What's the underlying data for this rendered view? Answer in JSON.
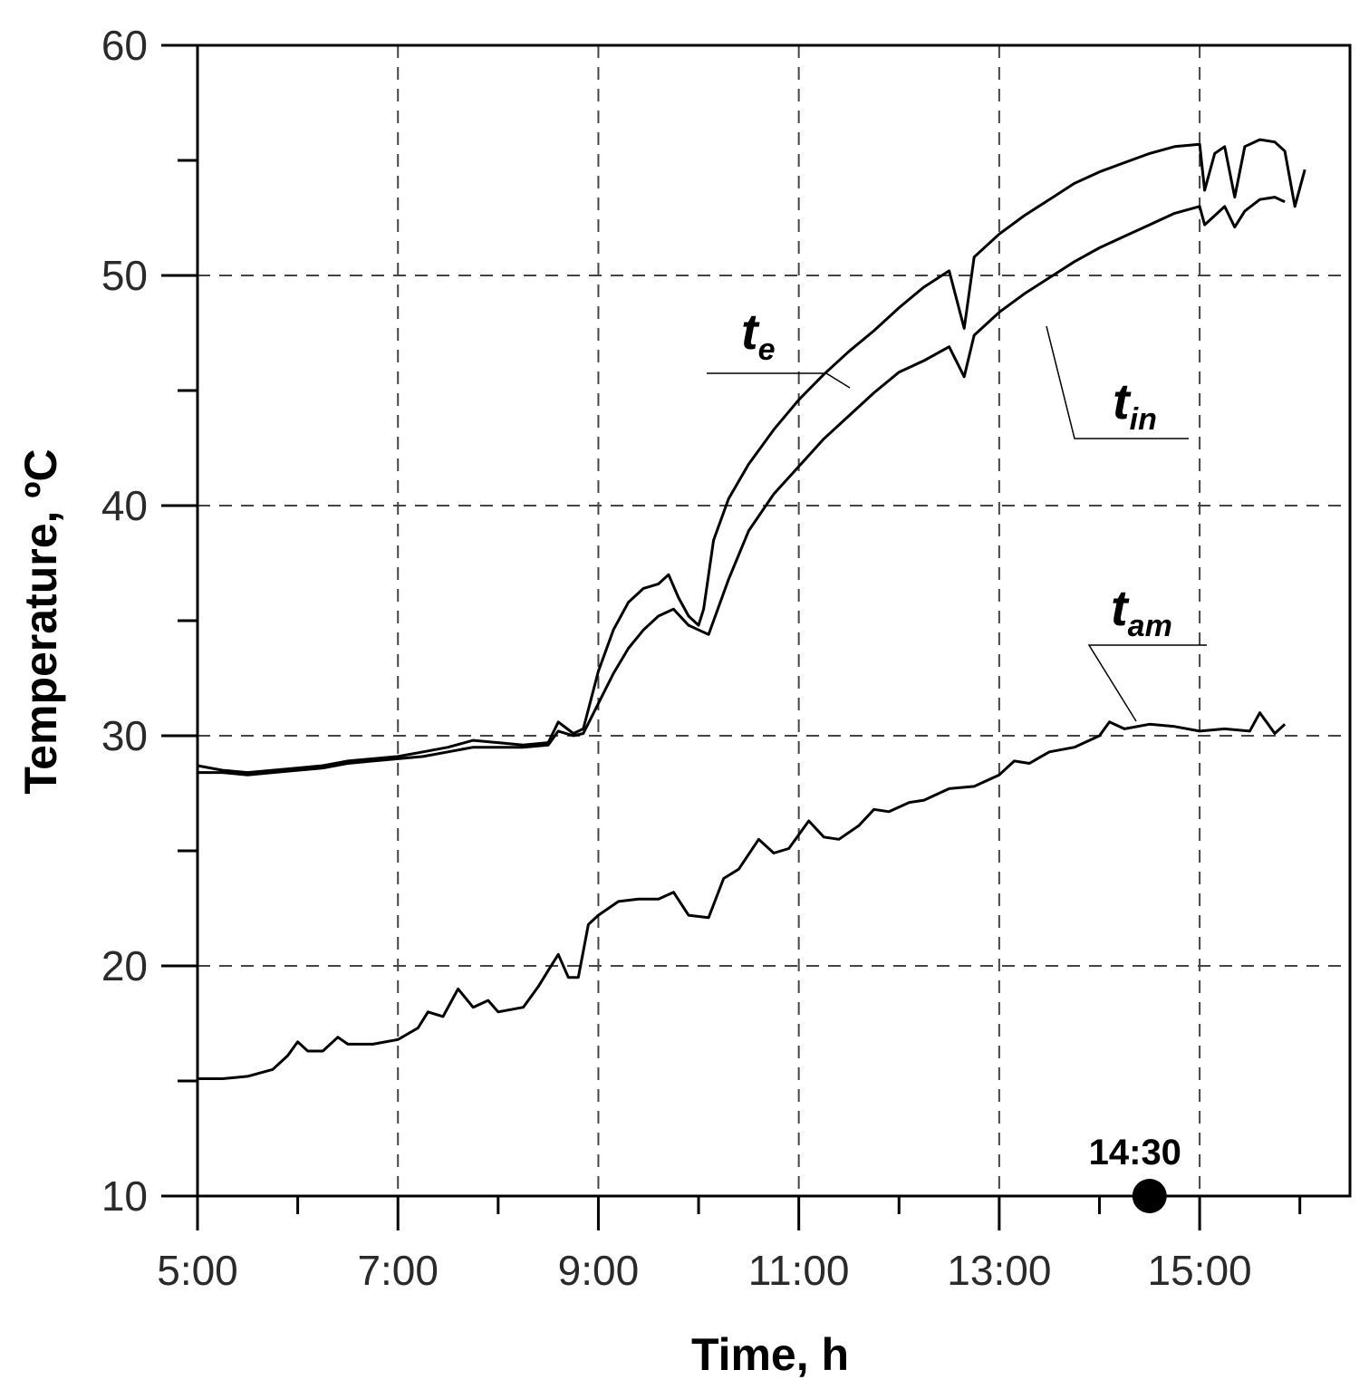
{
  "chart_data": {
    "type": "line",
    "xlabel": "Time, h",
    "ylabel": "Temperature, ºC",
    "xlim": [
      5.0,
      16.5
    ],
    "ylim": [
      10,
      60
    ],
    "x_ticks": [
      {
        "value": 5,
        "label": "5:00"
      },
      {
        "value": 7,
        "label": "7:00"
      },
      {
        "value": 9,
        "label": "9:00"
      },
      {
        "value": 11,
        "label": "11:00"
      },
      {
        "value": 13,
        "label": "13:00"
      },
      {
        "value": 15,
        "label": "15:00"
      }
    ],
    "y_ticks": [
      10,
      20,
      30,
      40,
      50,
      60
    ],
    "grid": true,
    "series": [
      {
        "name": "te",
        "label_main": "t",
        "label_sub": "e",
        "x": [
          5.0,
          5.25,
          5.5,
          5.75,
          6.0,
          6.25,
          6.5,
          6.75,
          7.0,
          7.25,
          7.5,
          7.75,
          8.0,
          8.25,
          8.5,
          8.6,
          8.75,
          8.85,
          9.0,
          9.15,
          9.3,
          9.45,
          9.6,
          9.7,
          9.8,
          9.9,
          10.0,
          10.05,
          10.15,
          10.3,
          10.5,
          10.75,
          11.0,
          11.25,
          11.5,
          11.75,
          12.0,
          12.25,
          12.5,
          12.65,
          12.75,
          13.0,
          13.25,
          13.5,
          13.75,
          14.0,
          14.25,
          14.5,
          14.75,
          15.0,
          15.05,
          15.15,
          15.25,
          15.35,
          15.45,
          15.6,
          15.75,
          15.85,
          15.95,
          16.05
        ],
        "y": [
          28.7,
          28.5,
          28.4,
          28.5,
          28.6,
          28.7,
          28.9,
          29.0,
          29.1,
          29.3,
          29.5,
          29.8,
          29.7,
          29.6,
          29.7,
          30.6,
          30.1,
          30.3,
          32.8,
          34.6,
          35.8,
          36.4,
          36.6,
          37.0,
          36.0,
          35.2,
          34.8,
          35.5,
          38.5,
          40.3,
          41.8,
          43.3,
          44.6,
          45.7,
          46.7,
          47.6,
          48.6,
          49.5,
          50.2,
          47.7,
          50.8,
          51.8,
          52.6,
          53.3,
          54.0,
          54.5,
          54.9,
          55.3,
          55.6,
          55.7,
          53.7,
          55.3,
          55.6,
          53.4,
          55.6,
          55.9,
          55.8,
          55.4,
          53.0,
          54.6
        ]
      },
      {
        "name": "tin",
        "label_main": "t",
        "label_sub": "in",
        "x": [
          5.0,
          5.25,
          5.5,
          5.75,
          6.0,
          6.25,
          6.5,
          6.75,
          7.0,
          7.25,
          7.5,
          7.75,
          8.0,
          8.25,
          8.5,
          8.6,
          8.75,
          8.85,
          9.0,
          9.15,
          9.3,
          9.45,
          9.6,
          9.75,
          9.9,
          10.0,
          10.1,
          10.3,
          10.5,
          10.75,
          11.0,
          11.25,
          11.5,
          11.75,
          12.0,
          12.25,
          12.5,
          12.65,
          12.75,
          13.0,
          13.25,
          13.5,
          13.75,
          14.0,
          14.25,
          14.5,
          14.75,
          15.0,
          15.05,
          15.15,
          15.25,
          15.35,
          15.45,
          15.6,
          15.75,
          15.85
        ],
        "y": [
          28.4,
          28.4,
          28.3,
          28.4,
          28.5,
          28.6,
          28.8,
          28.9,
          29.0,
          29.1,
          29.3,
          29.5,
          29.5,
          29.5,
          29.6,
          30.2,
          30.0,
          30.1,
          31.4,
          32.7,
          33.8,
          34.6,
          35.2,
          35.5,
          34.8,
          34.6,
          34.4,
          36.8,
          38.9,
          40.5,
          41.7,
          42.9,
          43.9,
          44.9,
          45.8,
          46.3,
          46.9,
          45.6,
          47.4,
          48.4,
          49.2,
          49.9,
          50.6,
          51.2,
          51.7,
          52.2,
          52.7,
          53.0,
          52.2,
          52.6,
          53.0,
          52.1,
          52.8,
          53.3,
          53.4,
          53.2
        ]
      },
      {
        "name": "tam",
        "label_main": "t",
        "label_sub": "am",
        "x": [
          5.0,
          5.25,
          5.5,
          5.75,
          5.9,
          6.0,
          6.1,
          6.25,
          6.4,
          6.5,
          6.6,
          6.75,
          7.0,
          7.2,
          7.3,
          7.45,
          7.6,
          7.75,
          7.9,
          8.0,
          8.25,
          8.4,
          8.5,
          8.6,
          8.7,
          8.8,
          8.9,
          9.0,
          9.2,
          9.4,
          9.6,
          9.75,
          9.9,
          10.1,
          10.25,
          10.4,
          10.6,
          10.75,
          10.9,
          11.1,
          11.25,
          11.4,
          11.6,
          11.75,
          11.9,
          12.1,
          12.25,
          12.5,
          12.75,
          13.0,
          13.15,
          13.3,
          13.5,
          13.75,
          14.0,
          14.1,
          14.25,
          14.5,
          14.75,
          15.0,
          15.25,
          15.5,
          15.6,
          15.75,
          15.85
        ],
        "y": [
          15.1,
          15.1,
          15.2,
          15.5,
          16.1,
          16.7,
          16.3,
          16.3,
          16.9,
          16.6,
          16.6,
          16.6,
          16.8,
          17.3,
          18.0,
          17.8,
          19.0,
          18.2,
          18.5,
          18.0,
          18.2,
          19.1,
          19.8,
          20.5,
          19.5,
          19.5,
          21.8,
          22.2,
          22.8,
          22.9,
          22.9,
          23.2,
          22.2,
          22.1,
          23.8,
          24.2,
          25.5,
          24.9,
          25.1,
          26.3,
          25.6,
          25.5,
          26.1,
          26.8,
          26.7,
          27.1,
          27.2,
          27.7,
          27.8,
          28.3,
          28.9,
          28.8,
          29.3,
          29.5,
          30.0,
          30.6,
          30.3,
          30.5,
          30.4,
          30.2,
          30.3,
          30.2,
          31.0,
          30.1,
          30.5
        ]
      }
    ],
    "marker": {
      "label": "14:30",
      "x": 14.5,
      "y": 10
    }
  }
}
